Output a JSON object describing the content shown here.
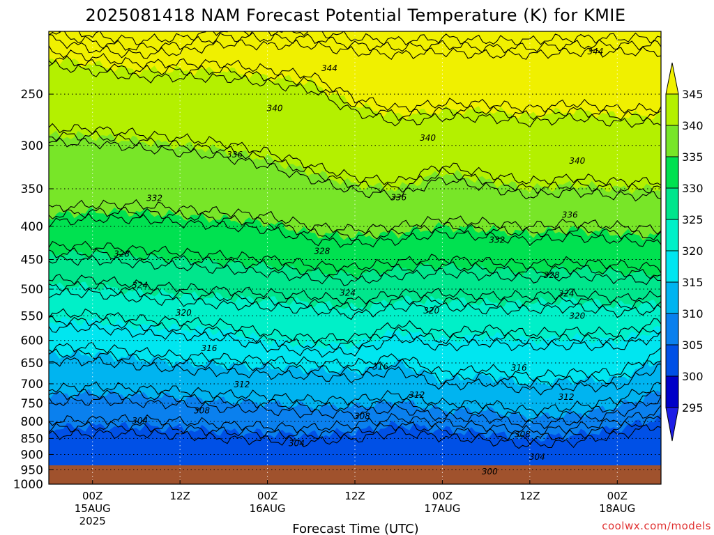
{
  "chart_data": {
    "type": "heatmap",
    "title": "2025081418 NAM Forecast Potential Temperature (K) for KMIE",
    "xlabel": "Forecast Time (UTC)",
    "ylabel": "",
    "x_ticks": [
      {
        "hour": 6,
        "label": "00Z",
        "sub1": "15AUG",
        "sub2": "2025"
      },
      {
        "hour": 18,
        "label": "12Z",
        "sub1": "",
        "sub2": ""
      },
      {
        "hour": 30,
        "label": "00Z",
        "sub1": "16AUG",
        "sub2": ""
      },
      {
        "hour": 42,
        "label": "12Z",
        "sub1": "",
        "sub2": ""
      },
      {
        "hour": 54,
        "label": "00Z",
        "sub1": "17AUG",
        "sub2": ""
      },
      {
        "hour": 66,
        "label": "12Z",
        "sub1": "",
        "sub2": ""
      },
      {
        "hour": 78,
        "label": "00Z",
        "sub1": "18AUG",
        "sub2": ""
      }
    ],
    "xlim": [
      0,
      84
    ],
    "y_ticks": [
      250,
      300,
      350,
      400,
      450,
      500,
      550,
      600,
      650,
      700,
      750,
      800,
      850,
      900,
      950,
      1000
    ],
    "ylim_hpa": [
      1000,
      200
    ],
    "log_pressure_axis": true,
    "grid": true,
    "colorbar": {
      "levels": [
        295,
        300,
        305,
        310,
        315,
        320,
        325,
        330,
        335,
        340,
        345
      ],
      "labels": [
        "295",
        "300",
        "305",
        "310",
        "315",
        "320",
        "325",
        "330",
        "335",
        "340",
        "345"
      ],
      "colors": [
        "#1e1ee6",
        "#0000c8",
        "#0050e6",
        "#0a80ee",
        "#00b4f0",
        "#00e6f0",
        "#00f0c8",
        "#00e68c",
        "#00e150",
        "#78e628",
        "#b4f000",
        "#f0f000"
      ]
    },
    "ground_color": "#a0522d",
    "contour_labels": [
      {
        "text": "344",
        "hour": 38.5,
        "hpa": 228
      },
      {
        "text": "344",
        "hour": 75.0,
        "hpa": 215
      },
      {
        "text": "340",
        "hour": 31.0,
        "hpa": 263
      },
      {
        "text": "340",
        "hour": 52.0,
        "hpa": 292
      },
      {
        "text": "340",
        "hour": 72.5,
        "hpa": 317
      },
      {
        "text": "336",
        "hour": 25.5,
        "hpa": 310
      },
      {
        "text": "336",
        "hour": 48.0,
        "hpa": 361
      },
      {
        "text": "336",
        "hour": 71.5,
        "hpa": 384
      },
      {
        "text": "332",
        "hour": 14.5,
        "hpa": 362
      },
      {
        "text": "332",
        "hour": 61.5,
        "hpa": 420
      },
      {
        "text": "328",
        "hour": 10.0,
        "hpa": 441
      },
      {
        "text": "328",
        "hour": 37.5,
        "hpa": 437
      },
      {
        "text": "328",
        "hour": 69.0,
        "hpa": 476
      },
      {
        "text": "324",
        "hour": 12.5,
        "hpa": 493
      },
      {
        "text": "324",
        "hour": 41.0,
        "hpa": 507
      },
      {
        "text": "324",
        "hour": 71.0,
        "hpa": 508
      },
      {
        "text": "320",
        "hour": 18.5,
        "hpa": 544
      },
      {
        "text": "320",
        "hour": 52.5,
        "hpa": 540
      },
      {
        "text": "320",
        "hour": 72.5,
        "hpa": 550
      },
      {
        "text": "316",
        "hour": 22.0,
        "hpa": 617
      },
      {
        "text": "316",
        "hour": 45.5,
        "hpa": 659
      },
      {
        "text": "316",
        "hour": 64.5,
        "hpa": 661
      },
      {
        "text": "312",
        "hour": 26.5,
        "hpa": 702
      },
      {
        "text": "312",
        "hour": 50.5,
        "hpa": 728
      },
      {
        "text": "312",
        "hour": 71.0,
        "hpa": 734
      },
      {
        "text": "308",
        "hour": 21.0,
        "hpa": 770
      },
      {
        "text": "308",
        "hour": 43.0,
        "hpa": 786
      },
      {
        "text": "308",
        "hour": 65.0,
        "hpa": 838
      },
      {
        "text": "304",
        "hour": 12.5,
        "hpa": 798
      },
      {
        "text": "304",
        "hour": 34.0,
        "hpa": 865
      },
      {
        "text": "304",
        "hour": 67.0,
        "hpa": 908
      },
      {
        "text": "300",
        "hour": 60.5,
        "hpa": 956
      }
    ]
  },
  "footer": {
    "credit": "coolwx.com/models"
  }
}
